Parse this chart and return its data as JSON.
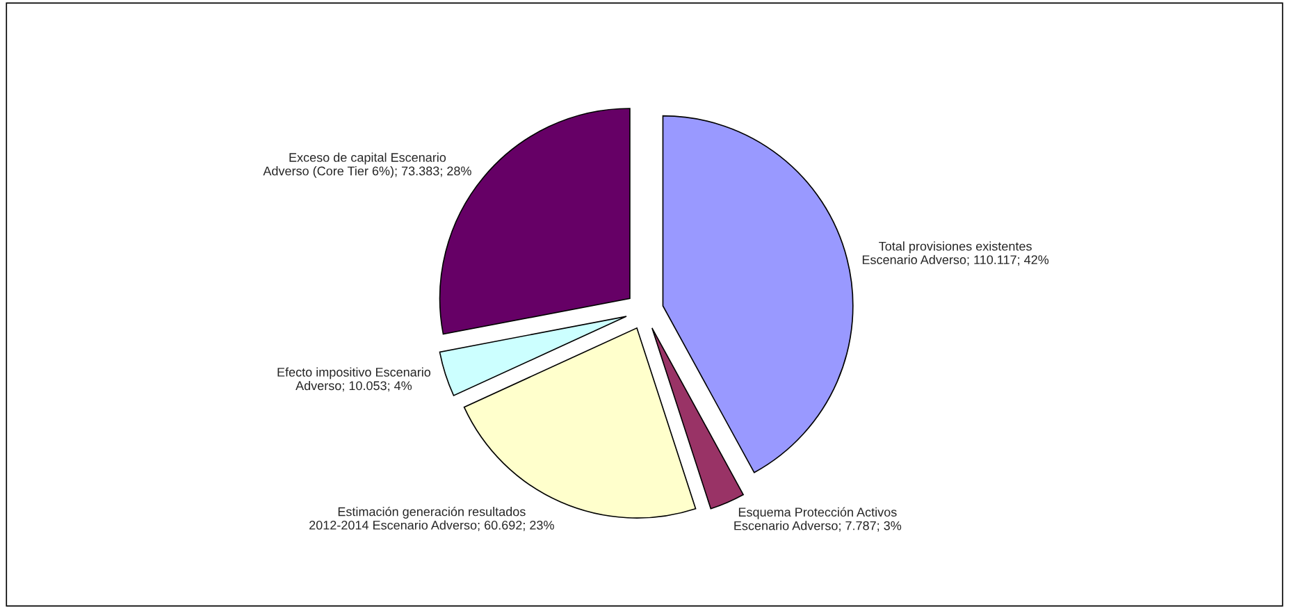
{
  "chart_data": {
    "type": "pie",
    "categories": [
      "Total provisiones existentes Escenario Adverso; 110.117; 42%",
      "Esquema Protección Activos Escenario Adverso; 7.787; 3%",
      "Estimación generación resultados 2012-2014 Escenario Adverso; 60.692; 23%",
      "Efecto impositivo Escenario Adverso; 10.053; 4%",
      "Exceso de capital Escenario Adverso (Core Tier 6%); 73.383; 28%"
    ],
    "values": [
      110117,
      7787,
      60692,
      10053,
      73383
    ],
    "colors": [
      "#9999ff",
      "#993366",
      "#ffffcc",
      "#ccffff",
      "#660066"
    ]
  }
}
